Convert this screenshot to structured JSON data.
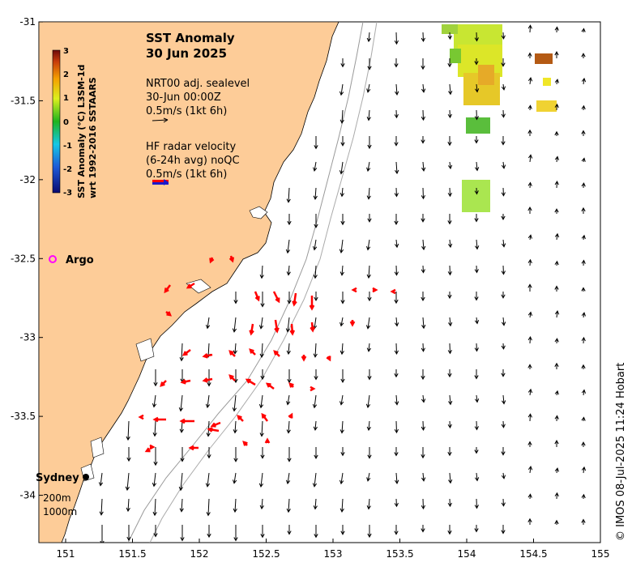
{
  "map": {
    "title": "SST Anomaly",
    "date": "30 Jun 2025",
    "legend": {
      "model_line1": "NRT00 adj. sealevel",
      "model_line2": "30-Jun 00:00Z",
      "model_scale": "0.5m/s (1kt 6h)",
      "radar_line1": "HF radar velocity",
      "radar_line2": "(6-24h avg) noQC",
      "radar_scale": "0.5m/s (1kt 6h)"
    },
    "colorbar": {
      "label_line1": "SST Anomaly (°C) L3SM-1d",
      "label_line2": "wrt 1992-2016 SSTAARS",
      "ticks": [
        "3",
        "2",
        "1",
        "0",
        "-1",
        "-2",
        "-3"
      ],
      "range": [
        -3,
        3
      ]
    },
    "places": {
      "argo": "Argo",
      "sydney": "Sydney",
      "iso200": "200m",
      "iso1000": "1000m"
    },
    "copyright": "© IMOS 08-Jul-2025 11:24 Hobart",
    "x_axis": {
      "ticks": [
        "151",
        "151.5",
        "152",
        "152.5",
        "153",
        "153.5",
        "154",
        "154.5",
        "155"
      ],
      "range": [
        150.8,
        155
      ]
    },
    "y_axis": {
      "ticks": [
        "-31",
        "-31.5",
        "-32",
        "-32.5",
        "-33",
        "-33.5",
        "-34"
      ],
      "range": [
        -34.3,
        -31
      ]
    },
    "colors": {
      "land": "#fdcc98",
      "model_arrow": "#000000",
      "radar_arrow": "#ff0000",
      "isobath": "#999999",
      "argo": "#ff00ff"
    }
  }
}
